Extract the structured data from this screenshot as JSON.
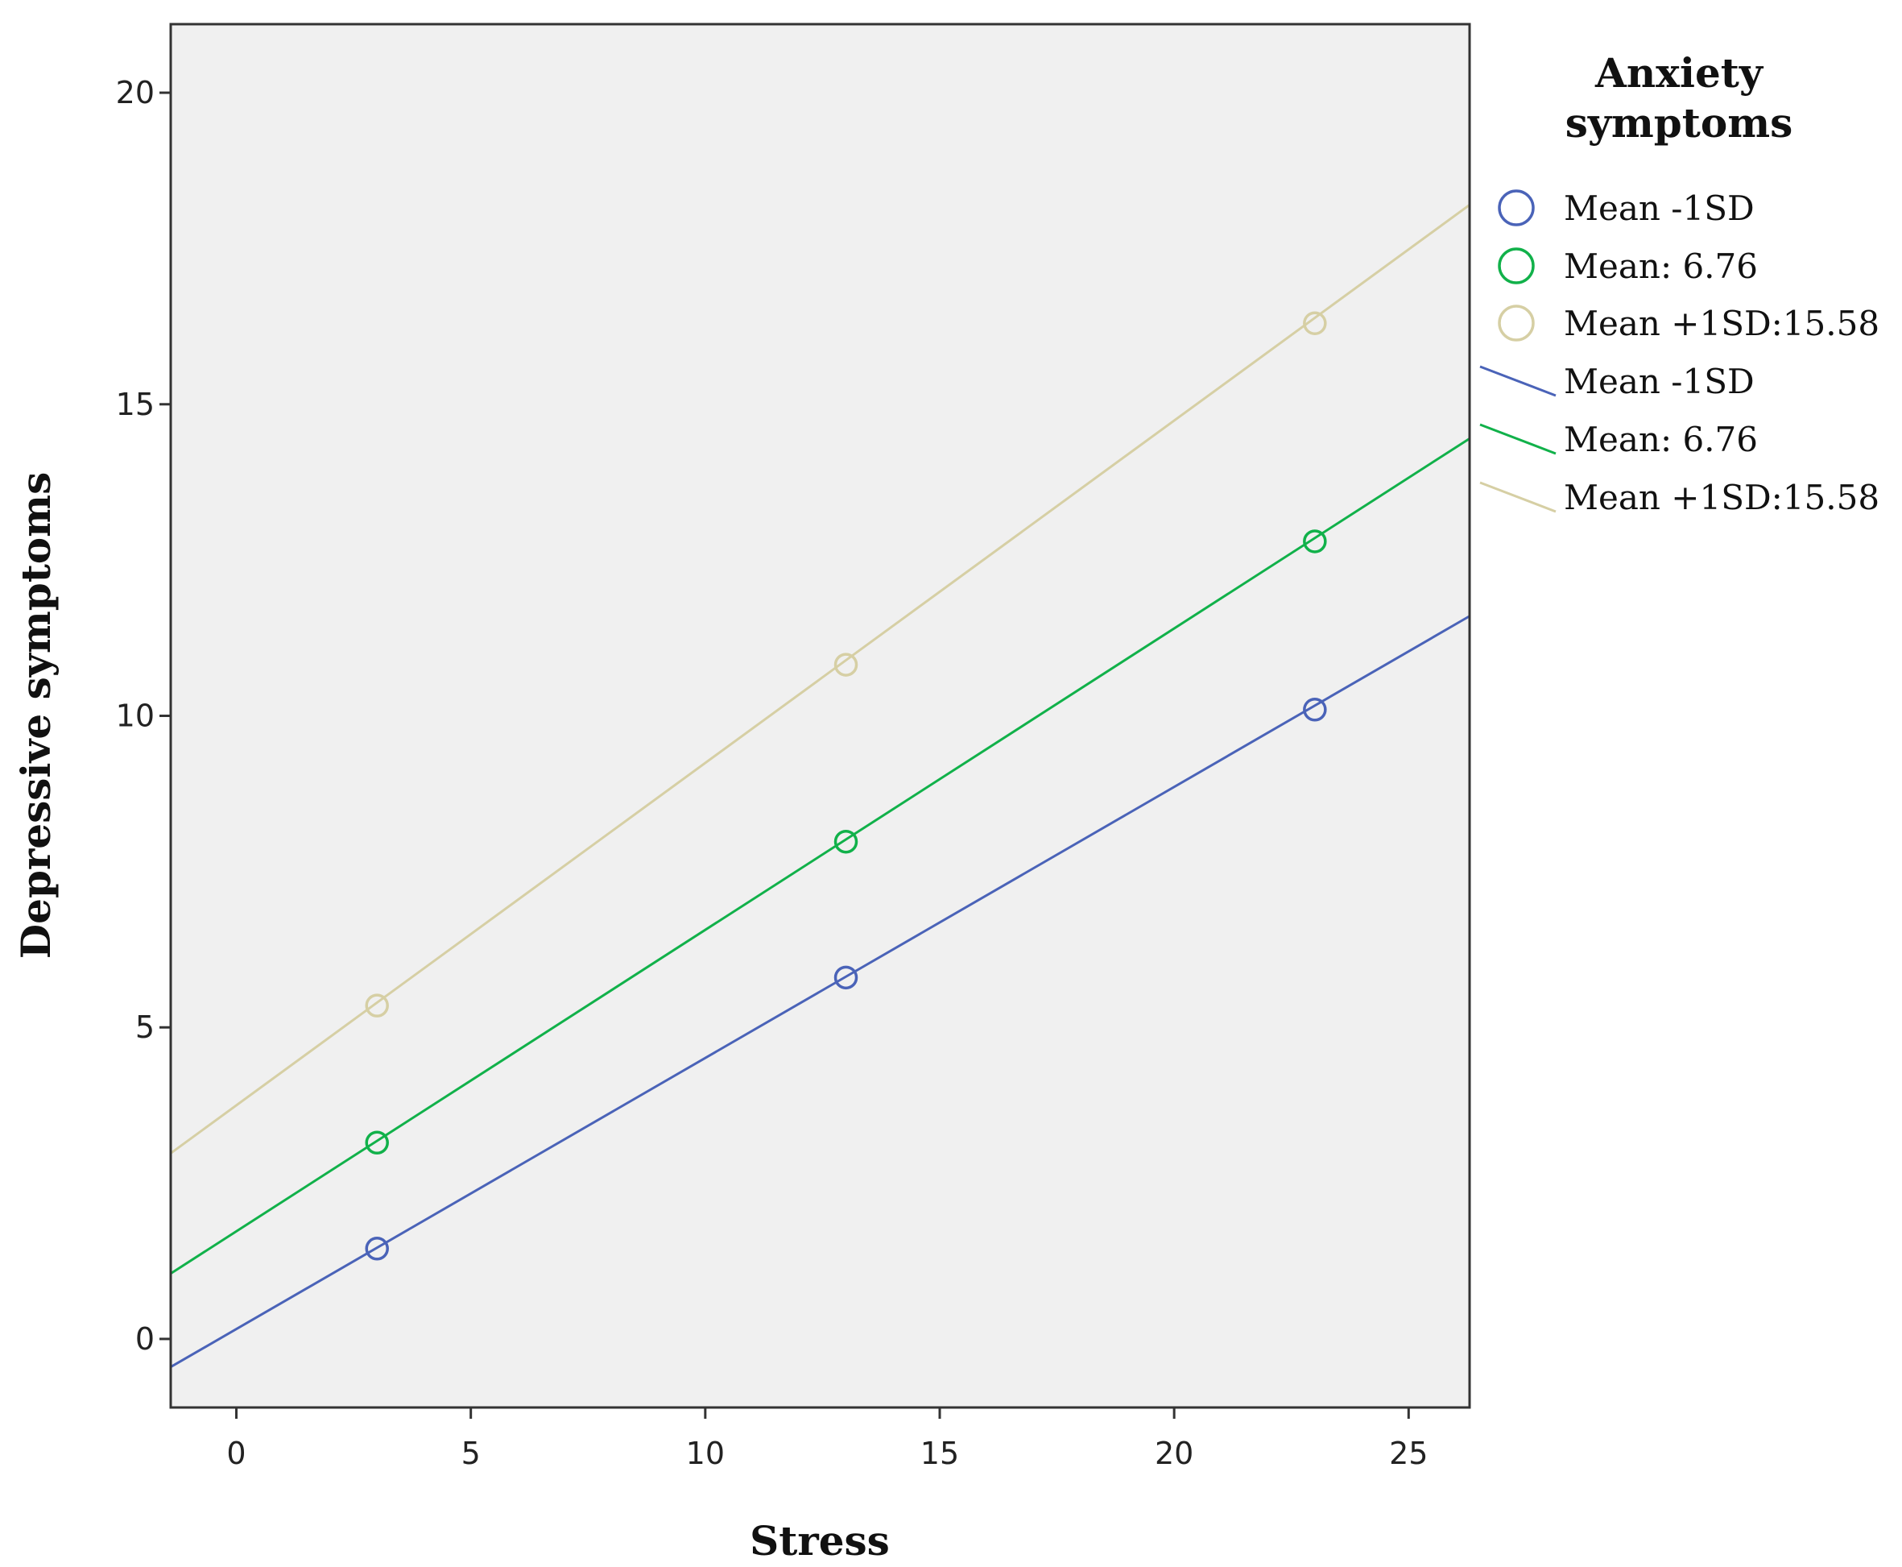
{
  "chart_data": {
    "type": "line",
    "xlabel": "Stress",
    "ylabel": "Depressive symptoms",
    "xlim": [
      -1.4,
      26.3
    ],
    "ylim": [
      -1.1,
      21.1
    ],
    "xticks": [
      0,
      5,
      10,
      15,
      20,
      25
    ],
    "yticks": [
      0,
      5,
      10,
      15,
      20
    ],
    "grid": false,
    "legend": {
      "title_lines": [
        "Anxiety",
        "symptoms"
      ],
      "placement": "right",
      "marker_entries": [
        "Mean -1SD",
        "Mean: 6.76",
        "Mean +1SD:15.58"
      ],
      "line_entries": [
        "Mean -1SD",
        "Mean: 6.76",
        "Mean +1SD:15.58"
      ]
    },
    "series": [
      {
        "name": "Mean -1SD",
        "color": "#4a63b8",
        "points": [
          [
            3,
            1.45
          ],
          [
            13,
            5.8
          ],
          [
            23,
            10.1
          ]
        ],
        "fit_line": [
          [
            -1.4,
            -0.45
          ],
          [
            26.3,
            11.6
          ]
        ]
      },
      {
        "name": "Mean: 6.76",
        "color": "#11b14a",
        "points": [
          [
            3,
            3.15
          ],
          [
            13,
            7.98
          ],
          [
            23,
            12.8
          ]
        ],
        "fit_line": [
          [
            -1.4,
            1.05
          ],
          [
            26.3,
            14.45
          ]
        ]
      },
      {
        "name": "Mean +1SD:15.58",
        "color": "#d6cfa4",
        "points": [
          [
            3,
            5.35
          ],
          [
            13,
            10.82
          ],
          [
            23,
            16.3
          ]
        ],
        "fit_line": [
          [
            -1.4,
            2.98
          ],
          [
            26.3,
            18.2
          ]
        ]
      }
    ]
  }
}
